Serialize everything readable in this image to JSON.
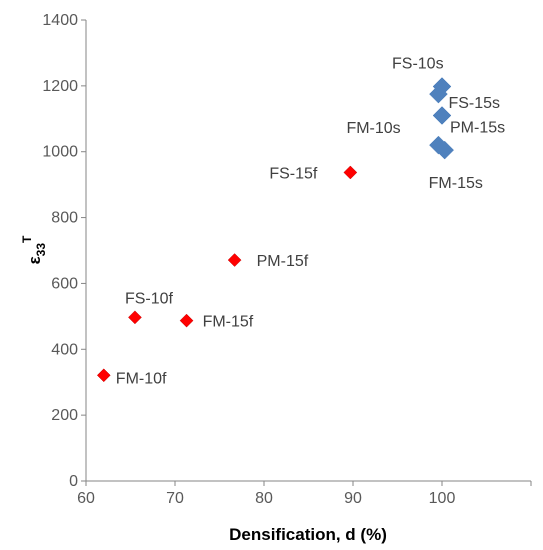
{
  "chart_data": {
    "type": "scatter",
    "xlabel": "Densification, d (%)",
    "ylabel": {
      "base": "ε",
      "sub": "33",
      "sup": "T"
    },
    "xlim": [
      60,
      110
    ],
    "ylim": [
      0,
      1400
    ],
    "x_ticks": [
      "60",
      "70",
      "80",
      "90",
      "100"
    ],
    "y_ticks": [
      "0",
      "200",
      "400",
      "600",
      "800",
      "1000",
      "1200",
      "1400"
    ],
    "grid": false,
    "legend": "none",
    "series": [
      {
        "marker": "diamond",
        "color": "#4f81bd",
        "points": [
          {
            "label": "FS-10s",
            "x": 100.0,
            "y": 1198
          },
          {
            "label": "FS-15s",
            "x": 99.6,
            "y": 1175
          },
          {
            "label": "PM-15s",
            "x": 100.0,
            "y": 1110
          },
          {
            "label": "FM-10s",
            "x": 99.6,
            "y": 1020
          },
          {
            "label": "FM-15s",
            "x": 100.3,
            "y": 1005
          }
        ]
      },
      {
        "marker": "diamond",
        "color": "#ff0000",
        "points": [
          {
            "label": "FS-15f",
            "x": 89.7,
            "y": 937
          },
          {
            "label": "PM-15f",
            "x": 76.7,
            "y": 671
          },
          {
            "label": "FS-10f",
            "x": 65.5,
            "y": 497
          },
          {
            "label": "FM-15f",
            "x": 71.3,
            "y": 487
          },
          {
            "label": "FM-10f",
            "x": 62.0,
            "y": 321
          }
        ]
      }
    ]
  }
}
